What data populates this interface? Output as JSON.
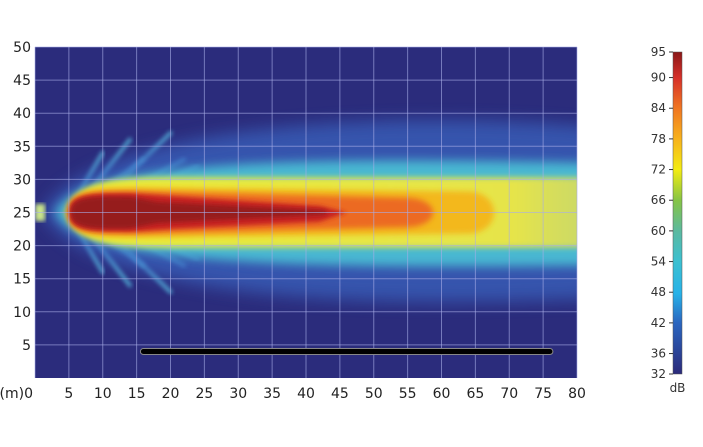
{
  "chart_data": {
    "type": "heatmap",
    "title": "",
    "xlabel": "(m)",
    "ylabel": "",
    "xlim": [
      0,
      80
    ],
    "ylim": [
      0,
      50
    ],
    "xticks": [
      0,
      5,
      10,
      15,
      20,
      25,
      30,
      35,
      40,
      45,
      50,
      55,
      60,
      65,
      70,
      75,
      80
    ],
    "yticks": [
      5,
      10,
      15,
      20,
      25,
      30,
      35,
      40,
      45,
      50
    ],
    "x_origin_label": "(m)0",
    "grid": true,
    "colorbar": {
      "unit": "dB",
      "range": [
        32,
        95
      ],
      "ticks": [
        95,
        90,
        84,
        78,
        72,
        66,
        60,
        54,
        48,
        42,
        36,
        32
      ],
      "colormap": "jet",
      "colors": {
        "32": "#2b2a7a",
        "42": "#2a66c0",
        "48": "#27b2e8",
        "54": "#3cc0d0",
        "60": "#5ab9a2",
        "66": "#86c444",
        "72": "#f3ec12",
        "78": "#f7b21c",
        "84": "#f07622",
        "90": "#d6302a",
        "95": "#8a1717"
      }
    },
    "line_segment": {
      "x": [
        16,
        76
      ],
      "y": 4,
      "color": "#000000"
    },
    "background_color": "#2b2c7c"
  }
}
